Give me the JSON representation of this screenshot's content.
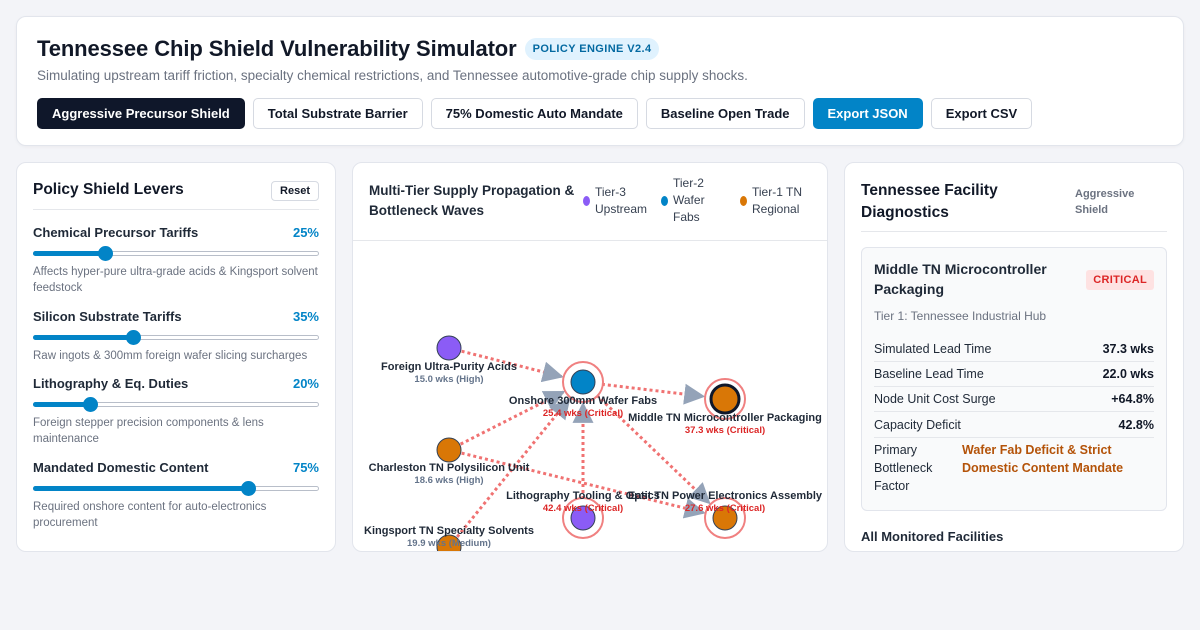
{
  "header": {
    "title": "Tennessee Chip Shield Vulnerability Simulator",
    "badge": "POLICY ENGINE V2.4",
    "subtitle": "Simulating upstream tariff friction, specialty chemical restrictions, and Tennessee automotive-grade chip supply shocks.",
    "buttons": [
      {
        "label": "Aggressive Precursor Shield"
      },
      {
        "label": "Total Substrate Barrier"
      },
      {
        "label": "75% Domestic Auto Mandate"
      },
      {
        "label": "Baseline Open Trade"
      },
      {
        "label": "Export JSON"
      },
      {
        "label": "Export CSV"
      }
    ]
  },
  "levers_panel": {
    "title": "Policy Shield Levers",
    "reset_label": "Reset",
    "levers": [
      {
        "name": "Chemical Precursor Tariffs",
        "value_label": "25%",
        "fraction": 0.25,
        "desc": "Affects hyper-pure ultra-grade acids & Kingsport solvent feedstock"
      },
      {
        "name": "Silicon Substrate Tariffs",
        "value_label": "35%",
        "fraction": 0.35,
        "desc": "Raw ingots & 300mm foreign wafer slicing surcharges"
      },
      {
        "name": "Lithography & Eq. Duties",
        "value_label": "20%",
        "fraction": 0.2,
        "desc": "Foreign stepper precision components & lens maintenance"
      },
      {
        "name": "Mandated Domestic Content",
        "value_label": "75%",
        "fraction": 0.75,
        "desc": "Required onshore content for auto-electronics procurement"
      }
    ]
  },
  "graph_panel": {
    "title": "Multi-Tier Supply Propagation & Bottleneck Waves",
    "legend": [
      {
        "label": "Tier-3 Upstream",
        "color": "#8b5cf6"
      },
      {
        "label": "Tier-2 Wafer Fabs",
        "color": "#0284c7"
      },
      {
        "label": "Tier-1 TN Regional",
        "color": "#d97706"
      }
    ],
    "nodes": [
      {
        "name": "Foreign Ultra-Purity Acids",
        "detail": "15.0 wks (High)",
        "tier": 3,
        "critical": false
      },
      {
        "name": "Charleston TN Polysilicon Unit",
        "detail": "18.6 wks (High)",
        "tier": 1,
        "critical": false
      },
      {
        "name": "Kingsport TN Specialty Solvents",
        "detail": "19.9 wks (Medium)",
        "tier": 1,
        "critical": false
      },
      {
        "name": "Onshore 300mm Wafer Fabs",
        "detail": "25.4 wks (Critical)",
        "tier": 2,
        "critical": true
      },
      {
        "name": "Lithography Tooling & Optics",
        "detail": "42.4 wks (Critical)",
        "tier": 3,
        "critical": true
      },
      {
        "name": "Middle TN Microcontroller Packaging",
        "detail": "37.3 wks (Critical)",
        "tier": 1,
        "critical": true
      },
      {
        "name": "East TN Power Electronics Assembly",
        "detail": "27.6 wks (Critical)",
        "tier": 1,
        "critical": true
      }
    ],
    "edges": [
      [
        0,
        3
      ],
      [
        1,
        3
      ],
      [
        2,
        3
      ],
      [
        4,
        3
      ],
      [
        3,
        5
      ],
      [
        3,
        6
      ],
      [
        1,
        6
      ]
    ]
  },
  "diagnostics": {
    "title": "Tennessee Facility Diagnostics",
    "mode": "Aggressive Shield",
    "facility": {
      "name": "Middle TN Microcontroller Packaging",
      "status": "CRITICAL",
      "tier_label": "Tier 1: Tennessee Industrial Hub",
      "stats": [
        {
          "label": "Simulated Lead Time",
          "value": "37.3 wks"
        },
        {
          "label": "Baseline Lead Time",
          "value": "22.0 wks"
        },
        {
          "label": "Node Unit Cost Surge",
          "value": "+64.8%"
        },
        {
          "label": "Capacity Deficit",
          "value": "42.8%"
        }
      ],
      "factor_label": "Primary Bottleneck Factor",
      "factor_value": "Wafer Fab Deficit & Strict Domestic Content Mandate"
    },
    "all_monitored": "All Monitored Facilities"
  }
}
